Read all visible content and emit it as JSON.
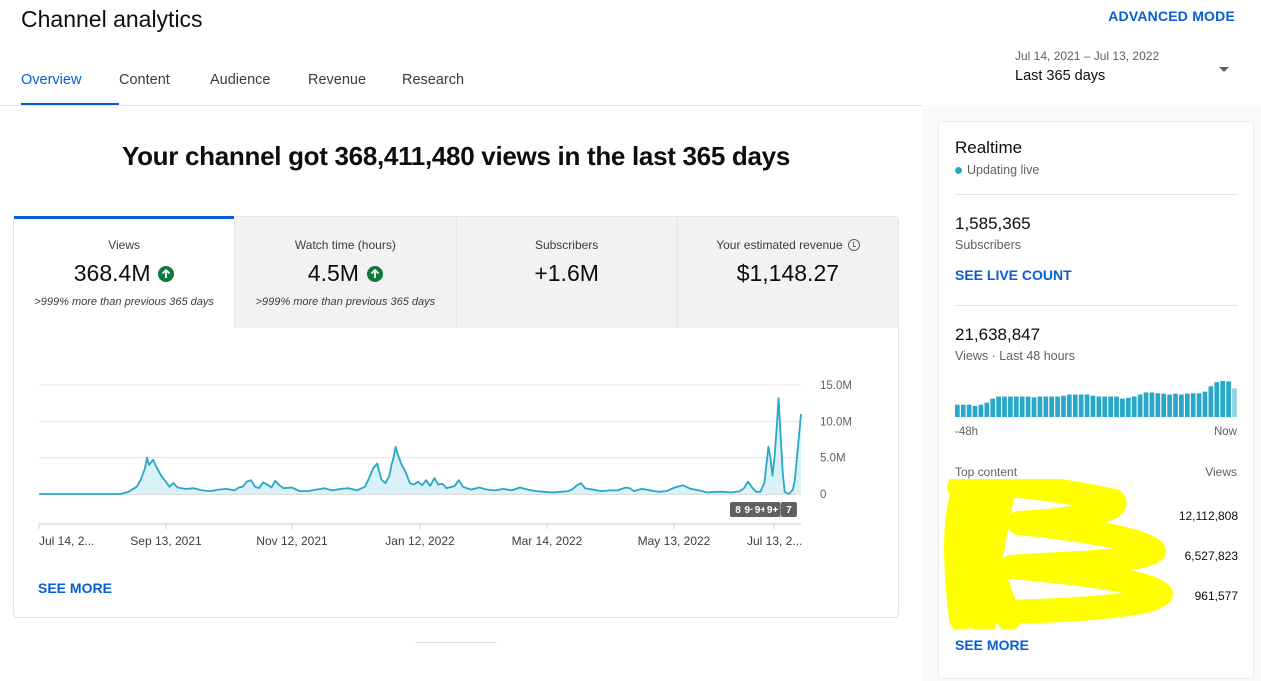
{
  "header": {
    "title": "Channel analytics",
    "advanced_mode": "ADVANCED MODE",
    "tabs": [
      {
        "label": "Overview",
        "active": true
      },
      {
        "label": "Content"
      },
      {
        "label": "Audience"
      },
      {
        "label": "Revenue"
      },
      {
        "label": "Research"
      }
    ],
    "date_range": "Jul 14, 2021 – Jul 13, 2022",
    "date_label": "Last 365 days"
  },
  "headline": "Your channel got 368,411,480 views in the last 365 days",
  "metrics": [
    {
      "label": "Views",
      "value": "368.4M",
      "trend": "up",
      "sub": ">999% more than previous 365 days"
    },
    {
      "label": "Watch time (hours)",
      "value": "4.5M",
      "trend": "up",
      "sub": ">999% more than previous 365 days"
    },
    {
      "label": "Subscribers",
      "value": "+1.6M"
    },
    {
      "label": "Your estimated revenue",
      "value": "$1,148.27",
      "icon": "info-icon"
    }
  ],
  "see_more": "SEE MORE",
  "chart_data": {
    "type": "area",
    "series_color": "#28a8c8",
    "y_ticks": [
      "15.0M",
      "10.0M",
      "5.0M",
      "0"
    ],
    "ylim": [
      0,
      15000000
    ],
    "x_ticks": [
      "Jul 14, 2...",
      "Sep 13, 2021",
      "Nov 12, 2021",
      "Jan 12, 2022",
      "Mar 14, 2022",
      "May 13, 2022",
      "Jul 13, 2..."
    ],
    "y_axis_position": "right",
    "grid": true,
    "markers": [
      {
        "label": "8",
        "day": 347
      },
      {
        "label": "9+",
        "day": 353
      },
      {
        "label": "9+",
        "day": 358
      },
      {
        "label": "9+",
        "day": 364
      },
      {
        "label": "7",
        "day": 372
      }
    ],
    "points": [
      [
        0,
        0
      ],
      [
        40,
        0
      ],
      [
        44,
        300000
      ],
      [
        48,
        1000000
      ],
      [
        50,
        2000000
      ],
      [
        52,
        3500000
      ],
      [
        53,
        5000000
      ],
      [
        54,
        4000000
      ],
      [
        56,
        4700000
      ],
      [
        58,
        3500000
      ],
      [
        60,
        2500000
      ],
      [
        62,
        1800000
      ],
      [
        64,
        1000000
      ],
      [
        66,
        1500000
      ],
      [
        68,
        900000
      ],
      [
        72,
        700000
      ],
      [
        76,
        800000
      ],
      [
        80,
        500000
      ],
      [
        84,
        400000
      ],
      [
        88,
        600000
      ],
      [
        92,
        700000
      ],
      [
        96,
        500000
      ],
      [
        98,
        900000
      ],
      [
        100,
        1000000
      ],
      [
        102,
        1700000
      ],
      [
        104,
        1900000
      ],
      [
        106,
        1000000
      ],
      [
        108,
        800000
      ],
      [
        110,
        1600000
      ],
      [
        112,
        1300000
      ],
      [
        114,
        900000
      ],
      [
        116,
        1800000
      ],
      [
        118,
        1200000
      ],
      [
        120,
        800000
      ],
      [
        124,
        900000
      ],
      [
        128,
        400000
      ],
      [
        132,
        400000
      ],
      [
        136,
        600000
      ],
      [
        140,
        800000
      ],
      [
        144,
        500000
      ],
      [
        148,
        700000
      ],
      [
        152,
        800000
      ],
      [
        156,
        500000
      ],
      [
        160,
        1000000
      ],
      [
        162,
        2200000
      ],
      [
        164,
        3500000
      ],
      [
        166,
        4200000
      ],
      [
        168,
        2000000
      ],
      [
        170,
        1500000
      ],
      [
        172,
        2500000
      ],
      [
        173,
        4000000
      ],
      [
        174,
        5000000
      ],
      [
        175,
        6500000
      ],
      [
        176,
        5500000
      ],
      [
        178,
        4000000
      ],
      [
        180,
        3000000
      ],
      [
        182,
        1500000
      ],
      [
        184,
        1300000
      ],
      [
        186,
        1700000
      ],
      [
        188,
        1200000
      ],
      [
        190,
        1900000
      ],
      [
        192,
        1100000
      ],
      [
        194,
        2200000
      ],
      [
        196,
        1300000
      ],
      [
        198,
        1400000
      ],
      [
        200,
        800000
      ],
      [
        204,
        1100000
      ],
      [
        206,
        1900000
      ],
      [
        208,
        1000000
      ],
      [
        212,
        600000
      ],
      [
        216,
        900000
      ],
      [
        220,
        600000
      ],
      [
        224,
        500000
      ],
      [
        228,
        700000
      ],
      [
        232,
        500000
      ],
      [
        236,
        900000
      ],
      [
        240,
        600000
      ],
      [
        244,
        400000
      ],
      [
        248,
        300000
      ],
      [
        252,
        200000
      ],
      [
        256,
        300000
      ],
      [
        260,
        400000
      ],
      [
        262,
        700000
      ],
      [
        264,
        1200000
      ],
      [
        266,
        1500000
      ],
      [
        268,
        800000
      ],
      [
        272,
        600000
      ],
      [
        276,
        400000
      ],
      [
        280,
        500000
      ],
      [
        284,
        500000
      ],
      [
        288,
        900000
      ],
      [
        290,
        800000
      ],
      [
        292,
        400000
      ],
      [
        296,
        700000
      ],
      [
        300,
        500000
      ],
      [
        304,
        300000
      ],
      [
        308,
        400000
      ],
      [
        312,
        900000
      ],
      [
        316,
        1200000
      ],
      [
        320,
        700000
      ],
      [
        324,
        500000
      ],
      [
        328,
        200000
      ],
      [
        332,
        300000
      ],
      [
        336,
        300000
      ],
      [
        340,
        200000
      ],
      [
        344,
        400000
      ],
      [
        346,
        800000
      ],
      [
        348,
        1700000
      ],
      [
        350,
        900000
      ],
      [
        352,
        300000
      ],
      [
        354,
        300000
      ],
      [
        356,
        1500000
      ],
      [
        358,
        6500000
      ],
      [
        359,
        5000000
      ],
      [
        360,
        2500000
      ],
      [
        361,
        5000000
      ],
      [
        362,
        9000000
      ],
      [
        363,
        13200000
      ],
      [
        364,
        8000000
      ],
      [
        365,
        3000000
      ],
      [
        366,
        300000
      ],
      [
        368,
        0
      ],
      [
        370,
        600000
      ],
      [
        371,
        2000000
      ],
      [
        372,
        5000000
      ],
      [
        373,
        8000000
      ],
      [
        374,
        11000000
      ]
    ],
    "x_max": 374
  },
  "realtime": {
    "title": "Realtime",
    "status": "Updating live",
    "subscribers_value": "1,585,365",
    "subscribers_label": "Subscribers",
    "see_live_count": "SEE LIVE COUNT",
    "views_value": "21,638,847",
    "views_label": "Views · Last 48 hours",
    "axis_left": "-48h",
    "axis_right": "Now",
    "hourly_bars": [
      30,
      30,
      30,
      27,
      30,
      35,
      45,
      50,
      50,
      50,
      50,
      50,
      50,
      48,
      50,
      50,
      50,
      50,
      52,
      55,
      55,
      55,
      55,
      52,
      50,
      50,
      50,
      50,
      45,
      47,
      50,
      55,
      60,
      60,
      58,
      57,
      55,
      57,
      55,
      57,
      58,
      58,
      62,
      75,
      85,
      88,
      87,
      70
    ],
    "bars_max": 88,
    "bar_color": "#28a8c8",
    "top_content_label": "Top content",
    "top_content_views_label": "Views",
    "top_content": [
      {
        "views": "12,112,808"
      },
      {
        "views": "6,527,823"
      },
      {
        "views": "961,577"
      }
    ],
    "see_more": "SEE MORE"
  }
}
